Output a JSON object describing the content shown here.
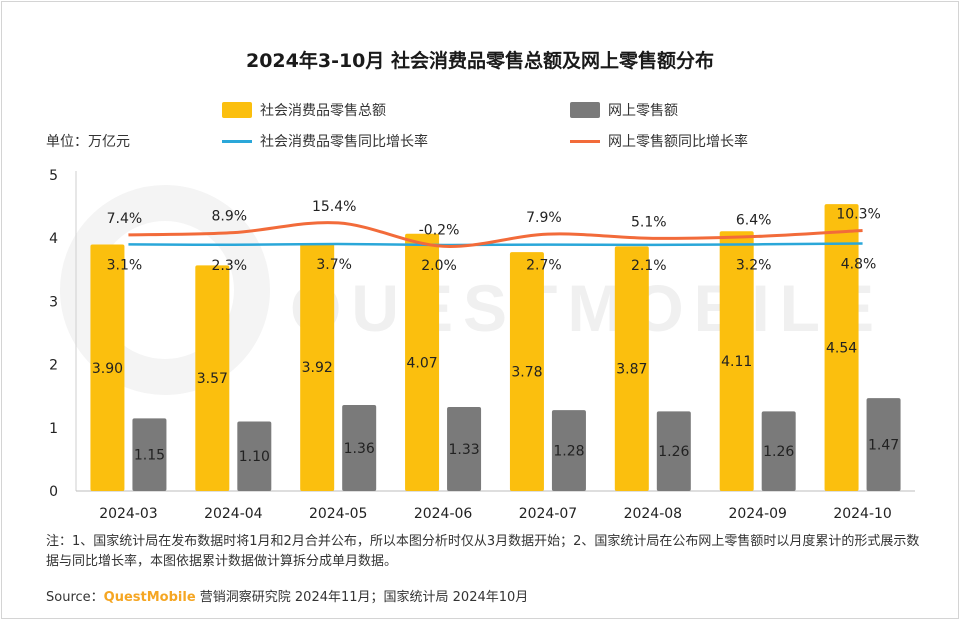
{
  "chart_data": {
    "type": "bar",
    "title": "2024年3-10月 社会消费品零售总额及网上零售额分布",
    "unit_label": "单位：万亿元",
    "categories": [
      "2024-03",
      "2024-04",
      "2024-05",
      "2024-06",
      "2024-07",
      "2024-08",
      "2024-09",
      "2024-10"
    ],
    "ylim": [
      0,
      5
    ],
    "yticks": [
      "0",
      "1",
      "2",
      "3",
      "4",
      "5"
    ],
    "series": [
      {
        "name": "社会消费品零售总额",
        "kind": "bar",
        "color": "#fbbf0e",
        "values": [
          3.9,
          3.57,
          3.92,
          4.07,
          3.78,
          3.87,
          4.11,
          4.54
        ],
        "labels": [
          "3.90",
          "3.57",
          "3.92",
          "4.07",
          "3.78",
          "3.87",
          "4.11",
          "4.54"
        ]
      },
      {
        "name": "网上零售额",
        "kind": "bar",
        "color": "#7a7a7a",
        "values": [
          1.15,
          1.1,
          1.36,
          1.33,
          1.28,
          1.26,
          1.26,
          1.47
        ],
        "labels": [
          "1.15",
          "1.10",
          "1.36",
          "1.33",
          "1.28",
          "1.26",
          "1.26",
          "1.47"
        ]
      },
      {
        "name": "社会消费品零售同比增长率",
        "kind": "line",
        "color": "#2aa7d9",
        "values_pct": [
          3.1,
          2.3,
          3.7,
          2.0,
          2.7,
          2.1,
          3.2,
          4.8
        ],
        "labels": [
          "3.1%",
          "2.3%",
          "3.7%",
          "2.0%",
          "2.7%",
          "2.1%",
          "3.2%",
          "4.8%"
        ]
      },
      {
        "name": "网上零售额同比增长率",
        "kind": "line",
        "color": "#f26b3a",
        "values_pct": [
          7.4,
          8.9,
          15.4,
          -0.2,
          7.9,
          5.1,
          6.4,
          10.3
        ],
        "labels": [
          "7.4%",
          "8.9%",
          "15.4%",
          "-0.2%",
          "7.9%",
          "5.1%",
          "6.4%",
          "10.3%"
        ]
      }
    ]
  },
  "notes": "注：1、国家统计局在发布数据时将1月和2月合并公布，所以本图分析时仅从3月数据开始；2、国家统计局在公布网上零售额时以月度累计的形式展示数据与同比增长率，本图依据累计数据做计算拆分成单月数据。",
  "source_prefix": "Source：",
  "source_brand": "QuestMobile",
  "source_rest": " 营销洞察研究院 2024年11月；国家统计局 2024年10月",
  "watermark": "QUESTMOBILE"
}
